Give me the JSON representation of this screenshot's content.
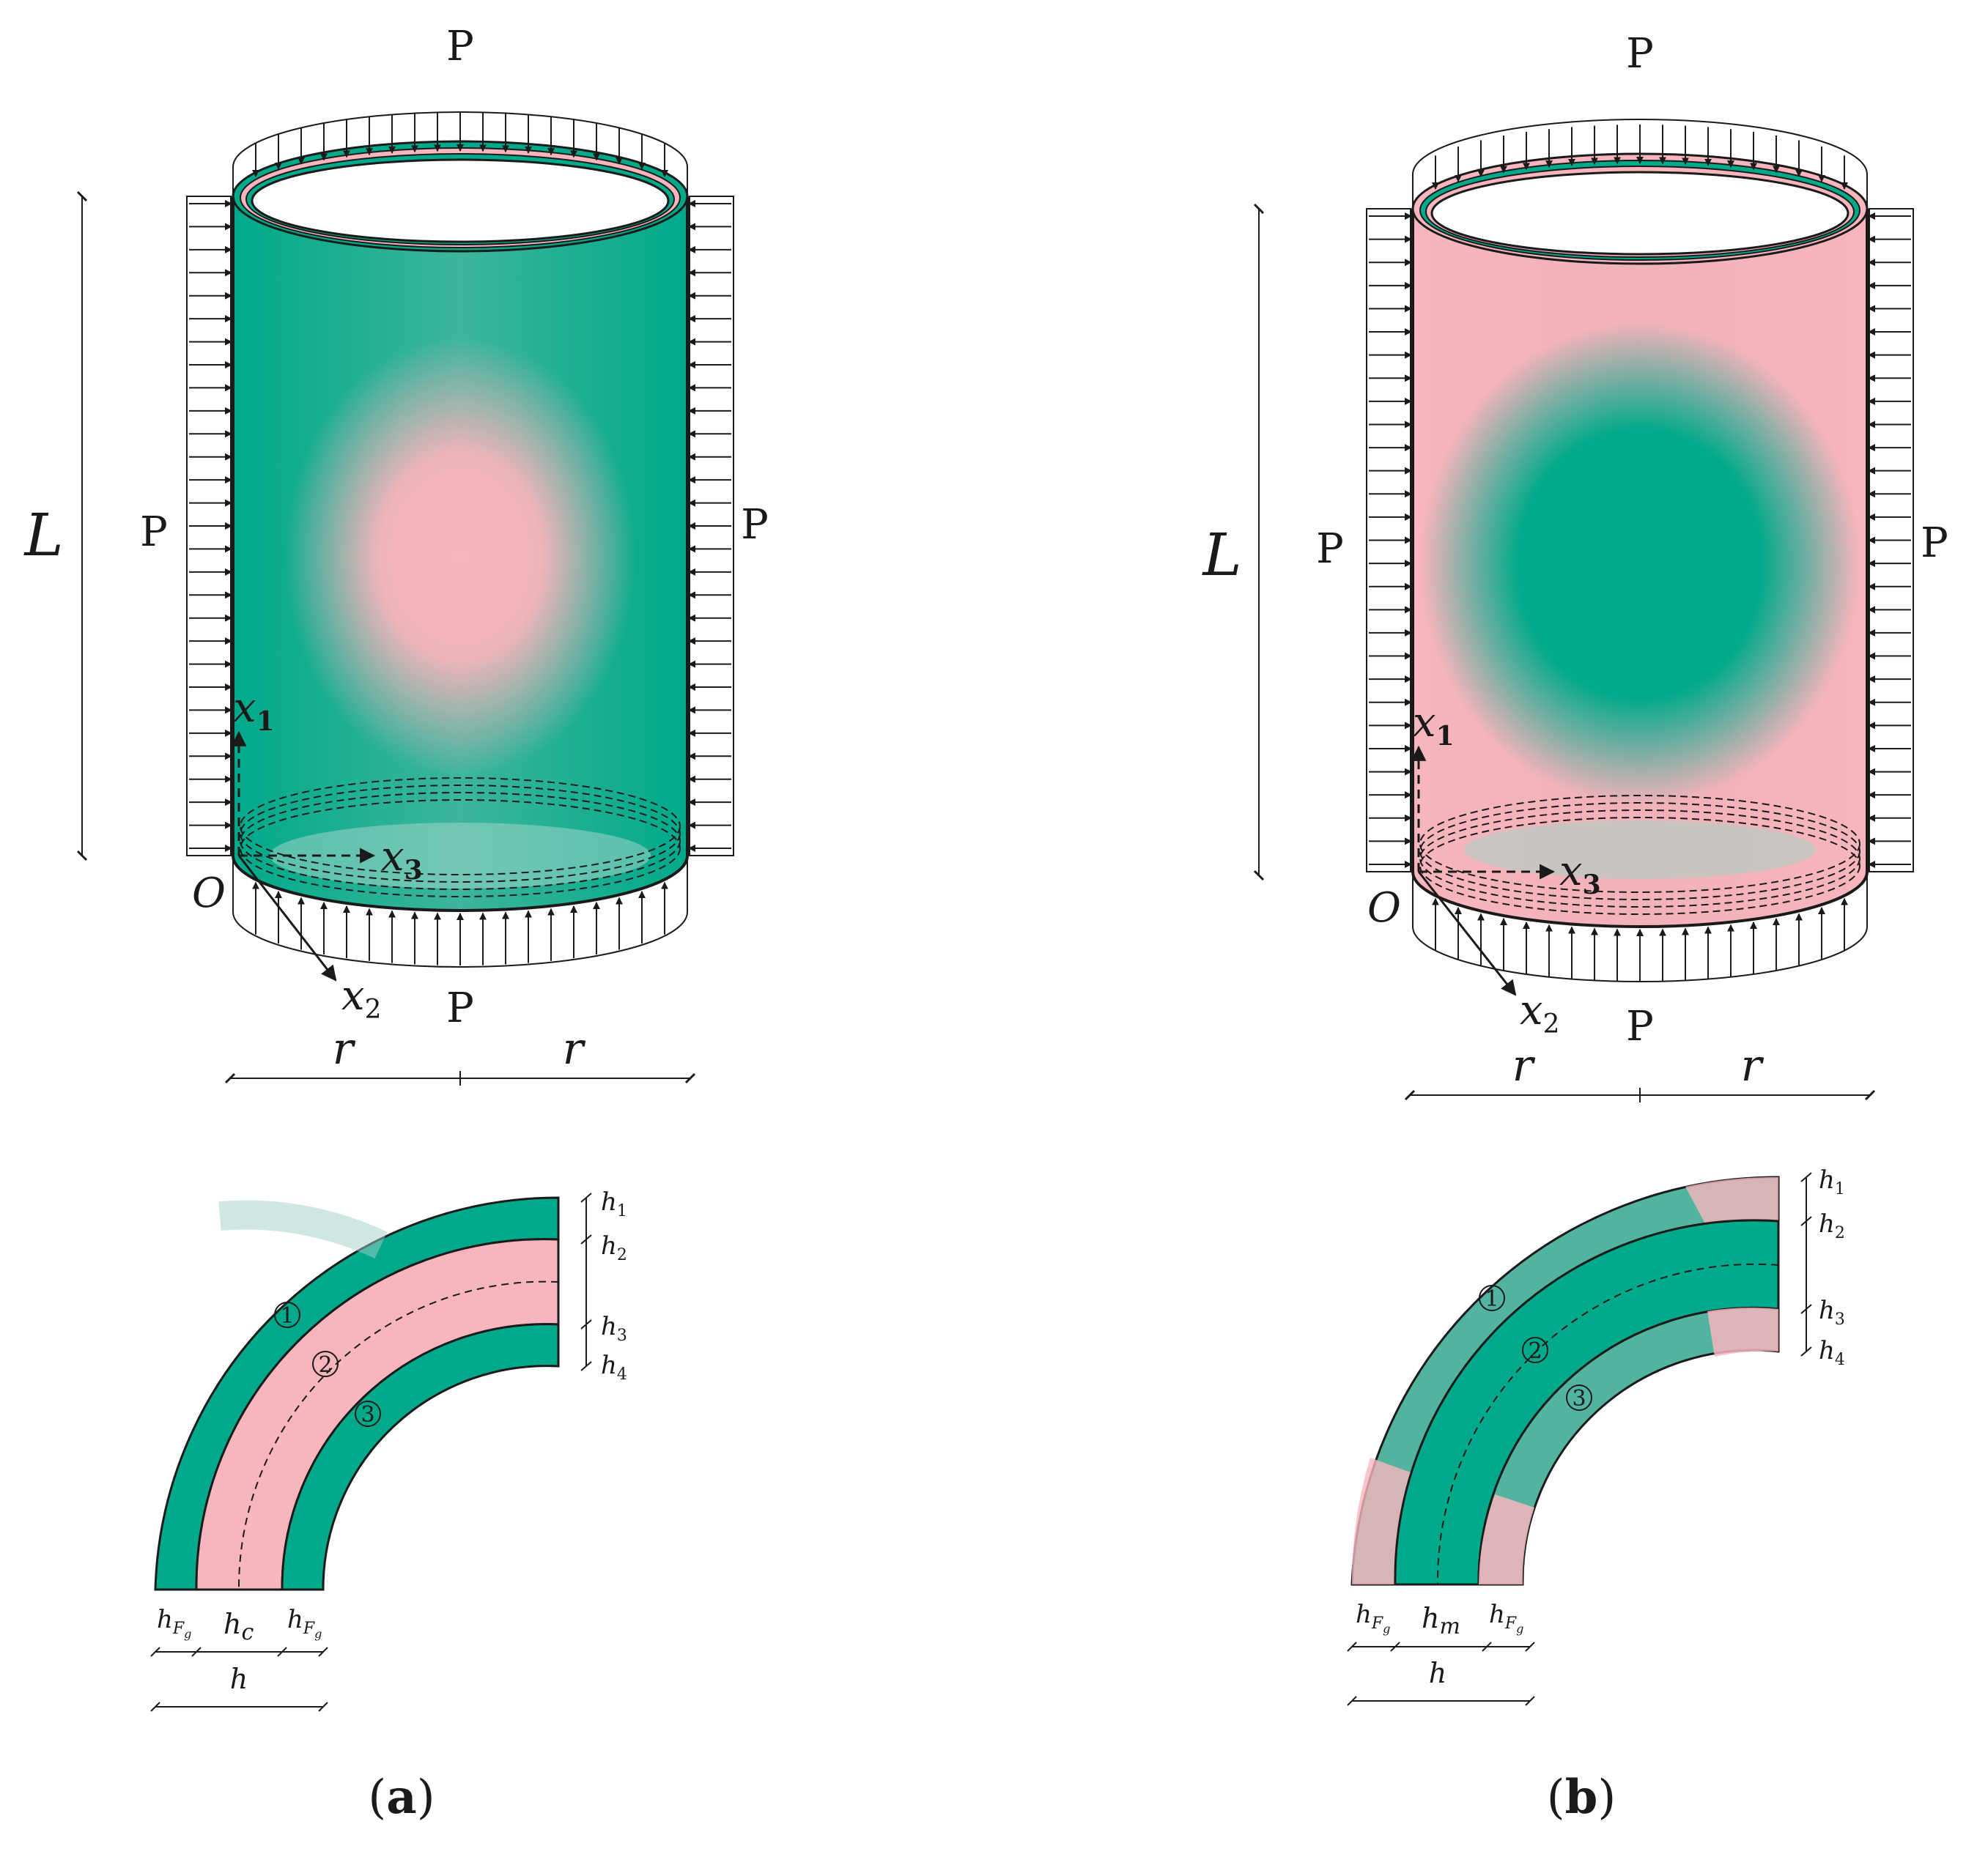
{
  "panels": [
    {
      "id": "a",
      "caption": "a",
      "load_label": "P",
      "length_label": "L",
      "radius_label": "r",
      "axis_x1": "x",
      "axis_x1_sub": "1",
      "axis_x2": "x",
      "axis_x2_sub": "2",
      "axis_x3": "x",
      "axis_x3_sub": "3",
      "origin_label": "O",
      "h_labels": [
        "h",
        "h",
        "h",
        "h"
      ],
      "h_subs": [
        "1",
        "2",
        "3",
        "4"
      ],
      "layer_numbers": [
        "1",
        "2",
        "3"
      ],
      "bottom_face": "h",
      "bottom_face_sub": "F",
      "bottom_face_subsub": "g",
      "bottom_core": "h",
      "bottom_core_sub": "c",
      "total_label": "h",
      "colors": {
        "outer_layers": "#00a98a",
        "core": "#f7b5bd"
      }
    },
    {
      "id": "b",
      "caption": "b",
      "load_label": "P",
      "length_label": "L",
      "radius_label": "r",
      "axis_x1": "x",
      "axis_x1_sub": "1",
      "axis_x2": "x",
      "axis_x2_sub": "2",
      "axis_x3": "x",
      "axis_x3_sub": "3",
      "origin_label": "O",
      "h_labels": [
        "h",
        "h",
        "h",
        "h"
      ],
      "h_subs": [
        "1",
        "2",
        "3",
        "4"
      ],
      "layer_numbers": [
        "1",
        "2",
        "3"
      ],
      "bottom_face": "h",
      "bottom_face_sub": "F",
      "bottom_face_subsub": "g",
      "bottom_core": "h",
      "bottom_core_sub": "m",
      "total_label": "h",
      "colors": {
        "outer_layers": "#f7b5bd",
        "core": "#00a98a"
      }
    }
  ]
}
